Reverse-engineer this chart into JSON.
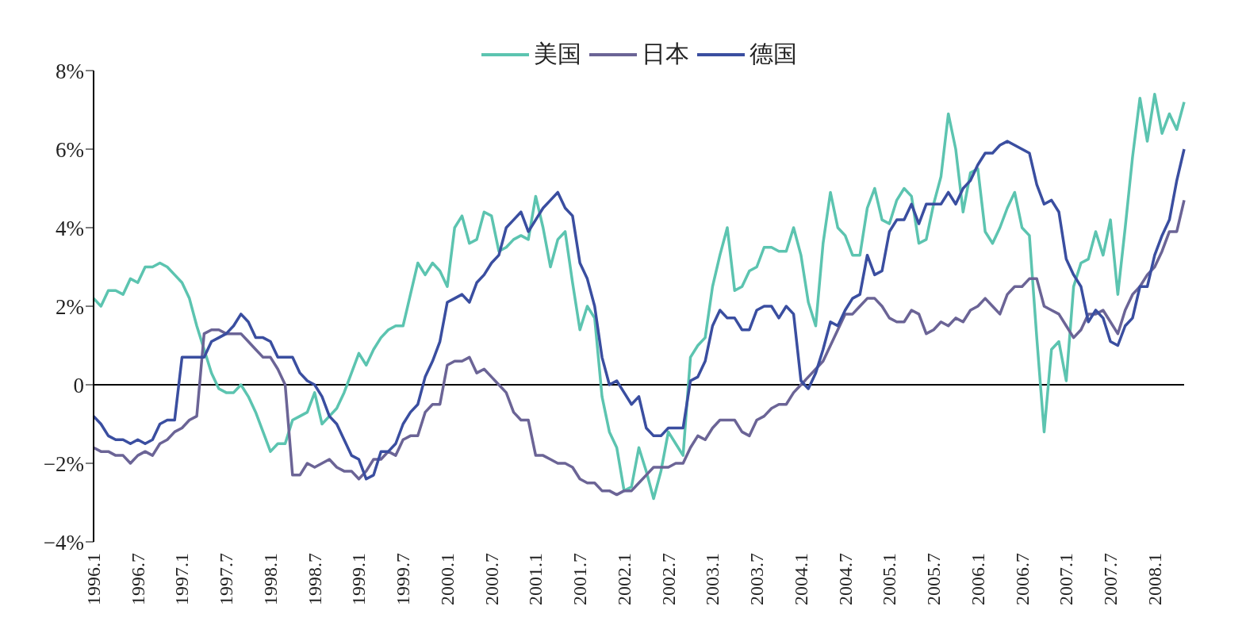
{
  "chart_data": {
    "type": "line",
    "categories": [
      "1996.1",
      null,
      null,
      null,
      null,
      null,
      "1996.7",
      null,
      null,
      null,
      null,
      null,
      "1997.1",
      null,
      null,
      null,
      null,
      null,
      "1997.7",
      null,
      null,
      null,
      null,
      null,
      "1998.1",
      null,
      null,
      null,
      null,
      null,
      "1998.7",
      null,
      null,
      null,
      null,
      null,
      "1999.1",
      null,
      null,
      null,
      null,
      null,
      "1999.7",
      null,
      null,
      null,
      null,
      null,
      "2000.1",
      null,
      null,
      null,
      null,
      null,
      "2000.7",
      null,
      null,
      null,
      null,
      null,
      "2001.1",
      null,
      null,
      null,
      null,
      null,
      "2001.7",
      null,
      null,
      null,
      null,
      null,
      "2002.1",
      null,
      null,
      null,
      null,
      null,
      "2002.7",
      null,
      null,
      null,
      null,
      null,
      "2003.1",
      null,
      null,
      null,
      null,
      null,
      "2003.7",
      null,
      null,
      null,
      null,
      null,
      "2004.1",
      null,
      null,
      null,
      null,
      null,
      "2004.7",
      null,
      null,
      null,
      null,
      null,
      "2005.1",
      null,
      null,
      null,
      null,
      null,
      "2005.7",
      null,
      null,
      null,
      null,
      null,
      "2006.1",
      null,
      null,
      null,
      null,
      null,
      "2006.7",
      null,
      null,
      null,
      null,
      null,
      "2007.1",
      null,
      null,
      null,
      null,
      null,
      "2007.7",
      null,
      null,
      null,
      null,
      null,
      "2008.1",
      null,
      null,
      null,
      null
    ],
    "series": [
      {
        "name": "美国",
        "color": "#5cc4b0",
        "values": [
          2.2,
          2.0,
          2.4,
          2.4,
          2.3,
          2.7,
          2.6,
          3.0,
          3.0,
          3.1,
          3.0,
          2.8,
          2.6,
          2.2,
          1.5,
          0.9,
          0.3,
          -0.1,
          -0.2,
          -0.2,
          0.0,
          -0.3,
          -0.7,
          -1.2,
          -1.7,
          -1.5,
          -1.5,
          -0.9,
          -0.8,
          -0.7,
          -0.2,
          -1.0,
          -0.8,
          -0.6,
          -0.2,
          0.3,
          0.8,
          0.5,
          0.9,
          1.2,
          1.4,
          1.5,
          1.5,
          2.3,
          3.1,
          2.8,
          3.1,
          2.9,
          2.5,
          4.0,
          4.3,
          3.6,
          3.7,
          4.4,
          4.3,
          3.4,
          3.5,
          3.7,
          3.8,
          3.7,
          4.8,
          4.0,
          3.0,
          3.7,
          3.9,
          2.6,
          1.4,
          2.0,
          1.7,
          -0.3,
          -1.2,
          -1.6,
          -2.7,
          -2.6,
          -1.6,
          -2.2,
          -2.9,
          -2.2,
          -1.2,
          -1.5,
          -1.8,
          0.7,
          1.0,
          1.2,
          2.5,
          3.3,
          4.0,
          2.4,
          2.5,
          2.9,
          3.0,
          3.5,
          3.5,
          3.4,
          3.4,
          4.0,
          3.3,
          2.1,
          1.5,
          3.6,
          4.9,
          4.0,
          3.8,
          3.3,
          3.3,
          4.5,
          5.0,
          4.2,
          4.1,
          4.7,
          5.0,
          4.8,
          3.6,
          3.7,
          4.6,
          5.3,
          6.9,
          6.0,
          4.4,
          5.4,
          5.5,
          3.9,
          3.6,
          4.0,
          4.5,
          4.9,
          4.0,
          3.8,
          1.2,
          -1.2,
          0.9,
          1.1,
          0.1,
          2.5,
          3.1,
          3.2,
          3.9,
          3.3,
          4.2,
          2.3,
          4.0,
          5.8,
          7.3,
          6.2,
          7.4,
          6.4,
          6.9,
          6.5,
          7.2
        ]
      },
      {
        "name": "日本",
        "color": "#6b6496",
        "values": [
          -1.6,
          -1.7,
          -1.7,
          -1.8,
          -1.8,
          -2.0,
          -1.8,
          -1.7,
          -1.8,
          -1.5,
          -1.4,
          -1.2,
          -1.1,
          -0.9,
          -0.8,
          1.3,
          1.4,
          1.4,
          1.3,
          1.3,
          1.3,
          1.1,
          0.9,
          0.7,
          0.7,
          0.4,
          0.0,
          -2.3,
          -2.3,
          -2.0,
          -2.1,
          -2.0,
          -1.9,
          -2.1,
          -2.2,
          -2.2,
          -2.4,
          -2.2,
          -1.9,
          -1.9,
          -1.7,
          -1.8,
          -1.4,
          -1.3,
          -1.3,
          -0.7,
          -0.5,
          -0.5,
          0.5,
          0.6,
          0.6,
          0.7,
          0.3,
          0.4,
          0.2,
          0.0,
          -0.2,
          -0.7,
          -0.9,
          -0.9,
          -1.8,
          -1.8,
          -1.9,
          -2.0,
          -2.0,
          -2.1,
          -2.4,
          -2.5,
          -2.5,
          -2.7,
          -2.7,
          -2.8,
          -2.7,
          -2.7,
          -2.5,
          -2.3,
          -2.1,
          -2.1,
          -2.1,
          -2.0,
          -2.0,
          -1.6,
          -1.3,
          -1.4,
          -1.1,
          -0.9,
          -0.9,
          -0.9,
          -1.2,
          -1.3,
          -0.9,
          -0.8,
          -0.6,
          -0.5,
          -0.5,
          -0.2,
          0.0,
          0.2,
          0.4,
          0.6,
          1.0,
          1.4,
          1.8,
          1.8,
          2.0,
          2.2,
          2.2,
          2.0,
          1.7,
          1.6,
          1.6,
          1.9,
          1.8,
          1.3,
          1.4,
          1.6,
          1.5,
          1.7,
          1.6,
          1.9,
          2.0,
          2.2,
          2.0,
          1.8,
          2.3,
          2.5,
          2.5,
          2.7,
          2.7,
          2.0,
          1.9,
          1.8,
          1.5,
          1.2,
          1.4,
          1.8,
          1.8,
          1.9,
          1.6,
          1.3,
          1.9,
          2.3,
          2.5,
          2.8,
          3.0,
          3.4,
          3.9,
          3.9,
          4.7
        ]
      },
      {
        "name": "德国",
        "color": "#3a4ea0",
        "values": [
          -0.8,
          -1.0,
          -1.3,
          -1.4,
          -1.4,
          -1.5,
          -1.4,
          -1.5,
          -1.4,
          -1.0,
          -0.9,
          -0.9,
          0.7,
          0.7,
          0.7,
          0.7,
          1.1,
          1.2,
          1.3,
          1.5,
          1.8,
          1.6,
          1.2,
          1.2,
          1.1,
          0.7,
          0.7,
          0.7,
          0.3,
          0.1,
          0.0,
          -0.3,
          -0.8,
          -1.0,
          -1.4,
          -1.8,
          -1.9,
          -2.4,
          -2.3,
          -1.7,
          -1.7,
          -1.5,
          -1.0,
          -0.7,
          -0.5,
          0.2,
          0.6,
          1.1,
          2.1,
          2.2,
          2.3,
          2.1,
          2.6,
          2.8,
          3.1,
          3.3,
          4.0,
          4.2,
          4.4,
          3.9,
          4.2,
          4.5,
          4.7,
          4.9,
          4.5,
          4.3,
          3.1,
          2.7,
          2.0,
          0.7,
          0.0,
          0.1,
          -0.2,
          -0.5,
          -0.3,
          -1.1,
          -1.3,
          -1.3,
          -1.1,
          -1.1,
          -1.1,
          0.1,
          0.2,
          0.6,
          1.5,
          1.9,
          1.7,
          1.7,
          1.4,
          1.4,
          1.9,
          2.0,
          2.0,
          1.7,
          2.0,
          1.8,
          0.1,
          -0.1,
          0.3,
          0.9,
          1.6,
          1.5,
          1.9,
          2.2,
          2.3,
          3.3,
          2.8,
          2.9,
          3.9,
          4.2,
          4.2,
          4.6,
          4.1,
          4.6,
          4.6,
          4.6,
          4.9,
          4.6,
          5.0,
          5.2,
          5.6,
          5.9,
          5.9,
          6.1,
          6.2,
          6.1,
          6.0,
          5.9,
          5.1,
          4.6,
          4.7,
          4.4,
          3.2,
          2.8,
          2.5,
          1.6,
          1.9,
          1.7,
          1.1,
          1.0,
          1.5,
          1.7,
          2.5,
          2.5,
          3.3,
          3.8,
          4.2,
          5.2,
          6.0
        ]
      }
    ],
    "ylim": [
      -4,
      8
    ],
    "yticks": [
      {
        "value": -4,
        "label": "−4%"
      },
      {
        "value": -2,
        "label": "−2%"
      },
      0,
      {
        "value": 2,
        "label": "2%"
      },
      {
        "value": 4,
        "label": "4%"
      },
      {
        "value": 6,
        "label": "6%"
      },
      {
        "value": 8,
        "label": "8%"
      }
    ],
    "ref_lines": [
      {
        "axis": "y",
        "value": 0,
        "color": "#000000"
      }
    ],
    "grid": false,
    "legend": "top"
  }
}
